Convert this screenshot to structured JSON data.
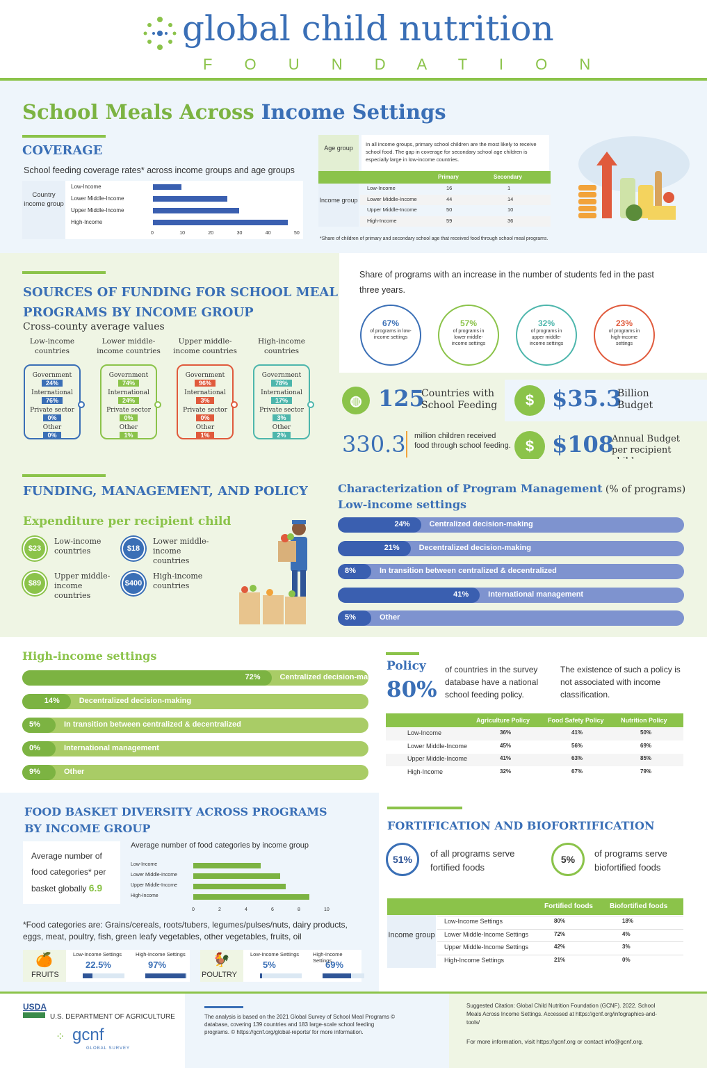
{
  "header": {
    "brand": "global child nutrition",
    "foundation": "F O U N D A T I O N"
  },
  "title": {
    "part1": "School Meals Across ",
    "part2": "Income Settings"
  },
  "coverage": {
    "heading": "COVERAGE",
    "subtitle": "School feeding coverage rates* across income groups and age groups",
    "axis_group": "Country income group",
    "chart_data": {
      "type": "bar",
      "categories": [
        "Low-Income",
        "Lower Middle-Income",
        "Upper Middle-Income",
        "High-Income"
      ],
      "values": [
        10,
        26,
        30,
        47
      ],
      "xlim": [
        0,
        50
      ],
      "ticks": [
        "0",
        "10",
        "20",
        "30",
        "40",
        "50"
      ]
    },
    "note": "In all income groups, primary school children are the most likely to receive school food. The gap in coverage for secondary school age children is especially large in low-income countries.",
    "age_group": "Age group",
    "income_group": "Income group",
    "cols": [
      "Primary",
      "Secondary"
    ],
    "rows": [
      [
        "Low-Income",
        "16",
        "1"
      ],
      [
        "Lower Middle-Income",
        "44",
        "14"
      ],
      [
        "Upper Middle-Income",
        "50",
        "10"
      ],
      [
        "High-Income",
        "59",
        "36"
      ]
    ],
    "footnote": "*Share of children of primary and secondary school age that received food through school meal programs."
  },
  "funding": {
    "heading1": "SOURCES OF FUNDING FOR SCHOOL MEAL",
    "heading2": "PROGRAMS BY INCOME GROUP",
    "subtitle": "Cross-county average values",
    "groups": [
      {
        "name": "Low-income countries",
        "color": "#3a6fb6",
        "gov": "24%",
        "intl": "76%",
        "priv": "0%",
        "other": "0%"
      },
      {
        "name": "Lower middle-income countries",
        "color": "#8bc34a",
        "gov": "74%",
        "intl": "24%",
        "priv": "0%",
        "other": "1%"
      },
      {
        "name": "Upper middle-income countries",
        "color": "#e05a3c",
        "gov": "96%",
        "intl": "3%",
        "priv": "0%",
        "other": "1%"
      },
      {
        "name": "High-income countries",
        "color": "#4db6ac",
        "gov": "78%",
        "intl": "17%",
        "priv": "3%",
        "other": "2%"
      }
    ],
    "labels": {
      "gov": "Government",
      "intl": "International",
      "priv": "Private sector",
      "other": "Other"
    }
  },
  "increase": {
    "text": "Share of programs with an increase in the number of students fed in the past three years.",
    "items": [
      {
        "pct": "67%",
        "label": "of programs in low-income settings",
        "color": "#3a6fb6"
      },
      {
        "pct": "57%",
        "label": "of programs in lower middle-income settings",
        "color": "#8bc34a"
      },
      {
        "pct": "32%",
        "label": "of programs in upper middle-income settings",
        "color": "#4db6ac"
      },
      {
        "pct": "23%",
        "label": "of programs in high-income settings",
        "color": "#e05a3c"
      }
    ]
  },
  "stats": {
    "countries": "125",
    "countries_label": "Countries with School Feeding",
    "budget": "$35.3",
    "budget_label": "Billion Budget",
    "children": "330.3",
    "children_label": "million children received food through school feeding.",
    "per_child": "$108",
    "per_child_label": "Annual Budget per recipient child"
  },
  "fmp": {
    "heading": "FUNDING, MANAGEMENT, AND POLICY",
    "exp_title": "Expenditure per recipient child",
    "exp": [
      {
        "val": "$23",
        "label": "Low-income countries",
        "color": "#8bc34a"
      },
      {
        "val": "$18",
        "label": "Lower middle-income countries",
        "color": "#3a6fb6"
      },
      {
        "val": "$89",
        "label": "Upper middle-income countries",
        "color": "#8bc34a"
      },
      {
        "val": "$400",
        "label": "High-income countries",
        "color": "#3a6fb6"
      }
    ]
  },
  "mgmt": {
    "title": "Characterization of Program Management",
    "suffix": " (% of programs)",
    "low_title": "Low-income settings",
    "low": [
      {
        "pct": "24%",
        "label": "Centralized decision-making",
        "value": 24
      },
      {
        "pct": "21%",
        "label": "Decentralized decision-making",
        "value": 21
      },
      {
        "pct": "8%",
        "label": "In transition between centralized & decentralized",
        "value": 8
      },
      {
        "pct": "41%",
        "label": "International management",
        "value": 41
      },
      {
        "pct": "5%",
        "label": "Other",
        "value": 5
      }
    ],
    "high_title": "High-income settings",
    "high": [
      {
        "pct": "72%",
        "label": "Centralized decision-making",
        "value": 72
      },
      {
        "pct": "14%",
        "label": "Decentralized decision-making",
        "value": 14
      },
      {
        "pct": "5%",
        "label": "In transition between centralized & decentralized",
        "value": 5
      },
      {
        "pct": "0%",
        "label": "International management",
        "value": 0
      },
      {
        "pct": "9%",
        "label": "Other",
        "value": 9
      }
    ]
  },
  "policy": {
    "title": "Policy",
    "pct": "80%",
    "text1": "of countries in the survey database have a national school feeding policy.",
    "text2": "The existence of such a policy is not associated with income classification.",
    "cols": [
      "Agriculture Policy",
      "Food Safety Policy",
      "Nutrition Policy"
    ],
    "rows": [
      [
        "Low-Income",
        "36%",
        "41%",
        "50%"
      ],
      [
        "Lower Middle-Income",
        "45%",
        "56%",
        "69%"
      ],
      [
        "Upper Middle-Income",
        "41%",
        "63%",
        "85%"
      ],
      [
        "High-Income",
        "32%",
        "67%",
        "79%"
      ]
    ]
  },
  "basket": {
    "heading1": "FOOD BASKET DIVERSITY ACROSS PROGRAMS",
    "heading2": "BY INCOME GROUP",
    "avg_text": "Average number of food categories* per basket globally",
    "avg_val": "6.9",
    "chart_title": "Average number of food categories by income group",
    "chart_data": {
      "type": "bar",
      "categories": [
        "Low-Income",
        "Lower Middle-Income",
        "Upper Middle-Income",
        "High-Income"
      ],
      "values": [
        5.1,
        6.6,
        7,
        8.8
      ],
      "xlim": [
        0,
        10
      ],
      "ticks": [
        "0",
        "2",
        "4",
        "6",
        "8",
        "10"
      ]
    },
    "note": "*Food categories are: Grains/cereals, roots/tubers, legumes/pulses/nuts, dairy products, eggs, meat, poultry, fish, green leafy vegetables, other vegetables, fruits, oil",
    "fruits": {
      "label": "FRUITS",
      "low_label": "Low-Income Settings",
      "low": "22.5%",
      "low_v": 22.5,
      "high_label": "High-Income Settings",
      "high": "97%",
      "high_v": 97
    },
    "poultry": {
      "label": "POULTRY",
      "low_label": "Low-Income Settings",
      "low": "5%",
      "low_v": 5,
      "high_label": "High-Income Settings",
      "high": "69%",
      "high_v": 69
    }
  },
  "fort": {
    "heading": "FORTIFICATION AND BIOFORTIFICATION",
    "fort_pct": "51%",
    "fort_text": "of all programs serve fortified foods",
    "bio_pct": "5%",
    "bio_text": "of programs serve biofortified foods",
    "income_group": "Income group",
    "cols": [
      "Fortified foods",
      "Biofortified foods"
    ],
    "rows": [
      [
        "Low-Income Settings",
        "80%",
        "18%"
      ],
      [
        "Lower Middle-Income Settings",
        "72%",
        "4%"
      ],
      [
        "Upper Middle-Income Settings",
        "42%",
        "3%"
      ],
      [
        "High-Income Settings",
        "21%",
        "0%"
      ]
    ]
  },
  "footer": {
    "usda": "USDA",
    "usda_dept": "U.S. DEPARTMENT OF AGRICULTURE",
    "gcnf": "gcnf",
    "gcnf_sub": "GLOBAL SURVEY",
    "analysis": "The analysis is based on the 2021 Global Survey of School Meal Programs © database, covering 139 countries and 183 large-scale school feeding programs. © https://gcnf.org/global-reports/ for more information.",
    "citation": "Suggested Citation: Global Child Nutrition Foundation (GCNF). 2022. School Meals Across Income Settings. Accessed at https://gcnf.org/infographics-and-tools/",
    "more": "For more information, visit https://gcnf.org or contact info@gcnf.org."
  }
}
